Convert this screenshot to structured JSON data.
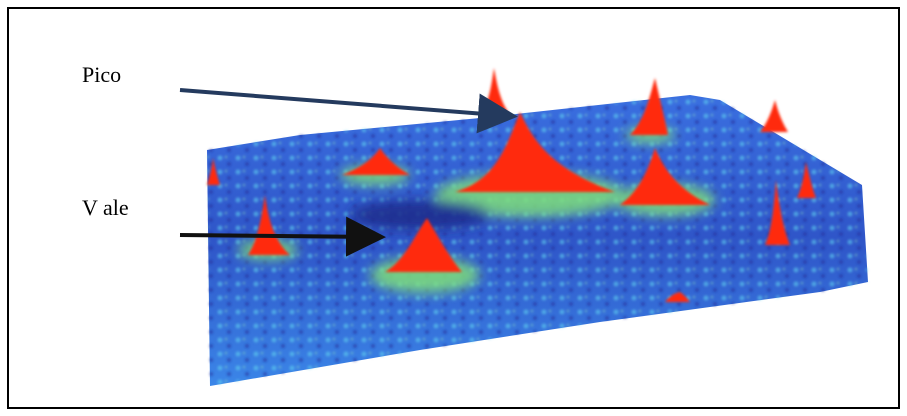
{
  "labels": {
    "peak": "Pico",
    "valley": "V ale"
  }
}
